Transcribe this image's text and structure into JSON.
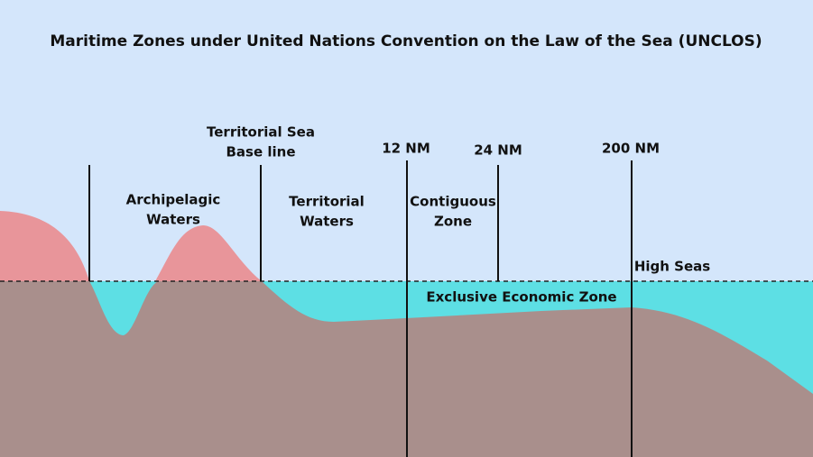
{
  "title": "Maritime Zones under United Nations Convention on the Law of the Sea (UNCLOS)",
  "baseline": {
    "line1": "Territorial Sea",
    "line2": "Base line"
  },
  "markers": {
    "nm12": "12 NM",
    "nm24": "24 NM",
    "nm200": "200 NM"
  },
  "zones": {
    "archipelagic": {
      "line1": "Archipelagic",
      "line2": "Waters"
    },
    "territorial": {
      "line1": "Territorial",
      "line2": "Waters"
    },
    "contiguous": {
      "line1": "Contiguous",
      "line2": "Zone"
    },
    "high_seas": "High Seas",
    "eez": "Exclusive Economic Zone"
  }
}
